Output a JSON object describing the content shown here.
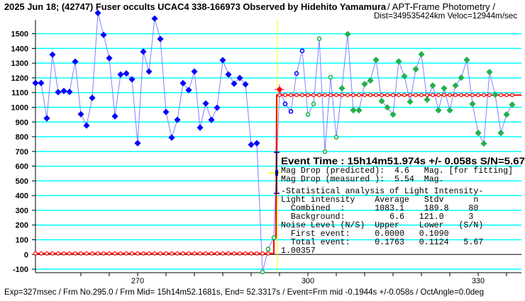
{
  "header": {
    "title_bold": "2025 Jun 18; (42747) Fuser occults UCAC4 338-166973 Observed by Hidehito Yamamura",
    "title_suffix": " / APT-Frame Photometry /",
    "subtitle": "Dist=349535424km  Veloc=12944m/sec"
  },
  "footer": "Exp=327msec / Frm No.295.0 / Frm Mid= 15h14m52.1681s,  End= 52.3317s / Event=Frm mid -0.1944s +/-0.058s / OctAngle=0.0deg",
  "results": {
    "event_time": "Event Time : 15h14m51.974s  +/- 0.058s  S/N=5.67",
    "lines": [
      "Mag Drop (predicted):  4.6   Mag. [for fitting]",
      "Mag Drop (measured ):  5.54  Mag.",
      "-Statistical analysis of Light Intensity-",
      "Light intensity    Average   Stdv      n",
      "  Combined  :      1083.1    189.8    80",
      "  Background:         6.6   121.0     3",
      "Noise Level (N/S)  Upper    Lower   (S/N)",
      "  First event:     0.0000   0.1090",
      "  Total event:     0.1763   0.1124   5.67",
      "1.00357"
    ]
  },
  "chart_data": {
    "type": "line",
    "title": "2025 Jun 18; (42747) Fuser occults UCAC4 338-166973 Observed by Hidehito Yamamura",
    "xlabel": "",
    "ylabel": "",
    "xlim": [
      252,
      337.4
    ],
    "ylim": [
      -120,
      1650
    ],
    "grid": true,
    "x_ticks_minor": [
      260,
      265,
      270,
      275,
      280,
      285,
      290,
      295,
      300,
      305,
      310,
      315,
      320,
      325,
      330,
      335
    ],
    "x_tick_labels": [
      "270",
      "300",
      "330"
    ],
    "x_tick_label_values": [
      270,
      300,
      330
    ],
    "y_ticks": [
      -100,
      0,
      100,
      200,
      300,
      400,
      500,
      600,
      700,
      800,
      900,
      1000,
      1100,
      1200,
      1300,
      1400,
      1500
    ],
    "y_tick_labels": [
      "-100",
      "0",
      "100",
      "200",
      "300",
      "400",
      "500",
      "600",
      "700",
      "800",
      "900",
      "1000",
      "1100",
      "1200",
      "1300",
      "1400",
      "1500"
    ],
    "x": [
      252,
      253,
      254,
      255,
      256,
      257,
      258,
      259,
      260,
      261,
      262,
      263,
      264,
      265,
      266,
      267,
      268,
      269,
      270,
      271,
      272,
      273,
      274,
      275,
      276,
      277,
      278,
      279,
      280,
      281,
      282,
      283,
      284,
      285,
      286,
      287,
      288,
      289,
      290,
      291,
      292,
      293,
      294,
      295,
      296,
      297,
      298,
      299,
      300,
      301,
      302,
      303,
      304,
      305,
      306,
      307,
      308,
      309,
      310,
      311,
      312,
      313,
      314,
      315,
      316,
      317,
      318,
      319,
      320,
      321,
      322,
      323,
      324,
      325,
      326,
      327,
      328,
      329,
      330,
      331,
      332,
      333,
      334,
      335,
      336
    ],
    "y": [
      1165,
      1165,
      925,
      1358,
      1103,
      1111,
      1105,
      1310,
      953,
      876,
      1064,
      1641,
      1492,
      1334,
      939,
      1223,
      1230,
      1190,
      756,
      1378,
      1243,
      1603,
      1464,
      968,
      794,
      915,
      1164,
      1117,
      1243,
      862,
      1026,
      915,
      997,
      1320,
      1223,
      1161,
      1199,
      1156,
      746,
      756,
      -119,
      37,
      114,
      1121,
      1023,
      972,
      1230,
      1384,
      951,
      1023,
      1466,
      698,
      1204,
      797,
      1129,
      1497,
      980,
      980,
      1158,
      1182,
      1322,
      1042,
      999,
      951,
      1312,
      1211,
      1038,
      1259,
      1360,
      1052,
      1148,
      980,
      1129,
      980,
      1148,
      1201,
      1322,
      1023,
      826,
      754,
      1240,
      1086,
      826,
      951,
      1018
    ],
    "point_groups": [
      {
        "from": 252,
        "to": 291,
        "marker": "filled-diamond",
        "color": "#0000ff"
      },
      {
        "from": 292,
        "to": 294,
        "marker": "open-circle",
        "color": "#22b14c"
      },
      {
        "from": 295,
        "to": 295,
        "marker": "filled-diamond-crosshair",
        "color": "#ff0000"
      },
      {
        "from": 296,
        "to": 299,
        "marker": "open-circle",
        "color": "#0000ff"
      },
      {
        "from": 300,
        "to": 305,
        "marker": "open-circle",
        "color": "#22b14c"
      },
      {
        "from": 306,
        "to": 336,
        "marker": "filled-diamond",
        "color": "#22b14c"
      }
    ],
    "model": {
      "background": 6.6,
      "occulted_level": 1083.1,
      "event_frame": 294.5,
      "partial_frame": 294,
      "partial_value": 114,
      "color": "#ff0000"
    },
    "colors": {
      "data_line": "#8080ff",
      "grid": "#00ffff",
      "event_marker": "#ffff00",
      "error_bar": "#000080",
      "crosshair": "#ff00ff"
    }
  }
}
